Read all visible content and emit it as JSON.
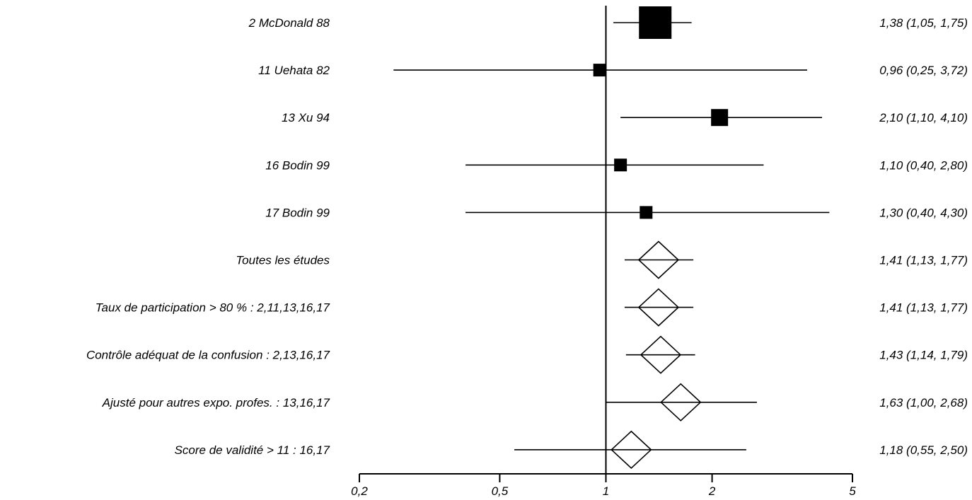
{
  "chart_data": {
    "type": "forest",
    "x_scale": "log",
    "xlim": [
      0.2,
      5
    ],
    "reference_line": 1,
    "x_ticks": [
      {
        "value": 0.2,
        "label": "0,2"
      },
      {
        "value": 0.5,
        "label": "0,5"
      },
      {
        "value": 1,
        "label": "1"
      },
      {
        "value": 2,
        "label": "2"
      },
      {
        "value": 5,
        "label": "5"
      }
    ],
    "rows": [
      {
        "label": "2 McDonald 88",
        "marker": "square",
        "estimate": 1.38,
        "lower": 1.05,
        "upper": 1.75,
        "weight": 1.0,
        "text": "1,38 (1,05, 1,75)"
      },
      {
        "label": "11 Uehata 82",
        "marker": "square",
        "estimate": 0.96,
        "lower": 0.25,
        "upper": 3.72,
        "weight": 0.15,
        "text": "0,96 (0,25, 3,72)"
      },
      {
        "label": "13 Xu 94",
        "marker": "square",
        "estimate": 2.1,
        "lower": 1.1,
        "upper": 4.1,
        "weight": 0.28,
        "text": "2,10 (1,10, 4,10)"
      },
      {
        "label": "16 Bodin 99",
        "marker": "square",
        "estimate": 1.1,
        "lower": 0.4,
        "upper": 2.8,
        "weight": 0.16,
        "text": "1,10 (0,40, 2,80)"
      },
      {
        "label": "17 Bodin 99",
        "marker": "square",
        "estimate": 1.3,
        "lower": 0.4,
        "upper": 4.3,
        "weight": 0.16,
        "text": "1,30 (0,40, 4,30)"
      },
      {
        "label": "Toutes les études",
        "marker": "diamond",
        "estimate": 1.41,
        "lower": 1.13,
        "upper": 1.77,
        "text": "1,41 (1,13, 1,77)"
      },
      {
        "label": "Taux de participation > 80 % : 2,11,13,16,17",
        "marker": "diamond",
        "estimate": 1.41,
        "lower": 1.13,
        "upper": 1.77,
        "text": "1,41 (1,13, 1,77)"
      },
      {
        "label": "Contrôle adéquat de la confusion : 2,13,16,17",
        "marker": "diamond",
        "estimate": 1.43,
        "lower": 1.14,
        "upper": 1.79,
        "text": "1,43 (1,14, 1,79)"
      },
      {
        "label": "Ajusté pour autres expo. profes. : 13,16,17",
        "marker": "diamond",
        "estimate": 1.63,
        "lower": 1.0,
        "upper": 2.68,
        "text": "1,63 (1,00, 2,68)"
      },
      {
        "label": "Score de validité > 11 : 16,17",
        "marker": "diamond",
        "estimate": 1.18,
        "lower": 0.55,
        "upper": 2.5,
        "text": "1,18 (0,55, 2,50)"
      }
    ]
  }
}
